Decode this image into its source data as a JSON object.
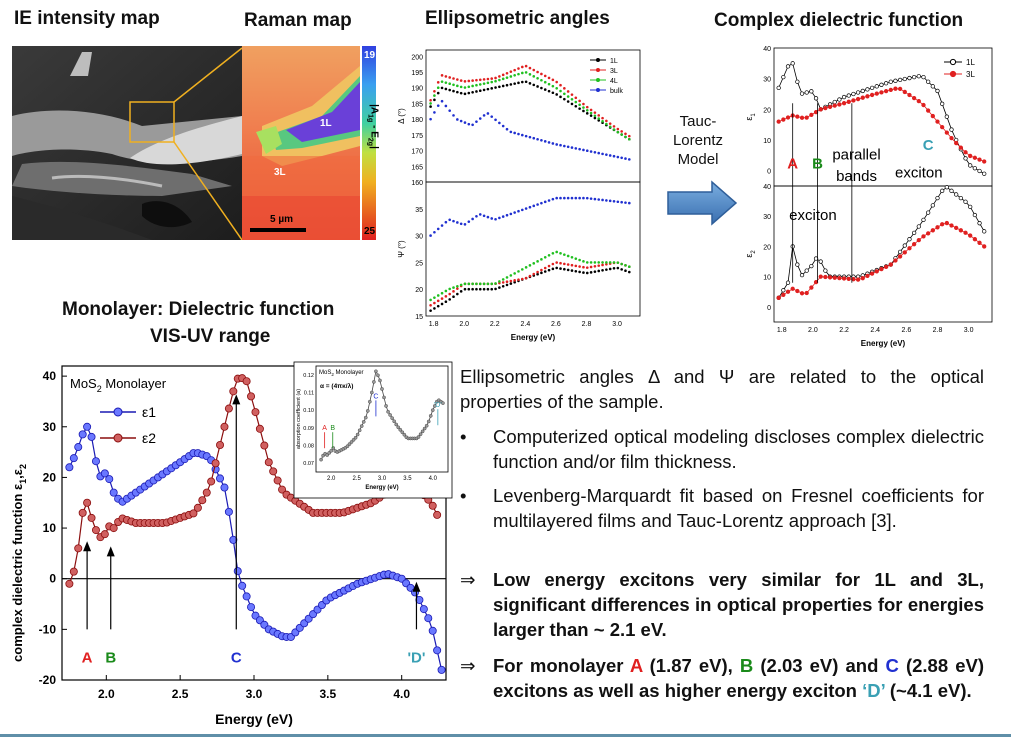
{
  "headers": {
    "ie_map": "IE intensity map",
    "raman_map": "Raman map",
    "ellipsometric": "Ellipsometric angles",
    "complex_dielectric": "Complex dielectric function",
    "monolayer_line1": "Monolayer: Dielectric function",
    "monolayer_line2": "VIS-UV range"
  },
  "raman": {
    "scale_top": "19",
    "scale_bottom": "25",
    "scale_label": "|A",
    "scale_label_sub": "1g",
    "scale_label_mid": " - E",
    "scale_label_sub2": "2g",
    "scale_label_end": "|",
    "label_1l": "1L",
    "label_3l": "3L",
    "scalebar": "5 µm"
  },
  "arrow_label": {
    "line1": "Tauc-",
    "line2": "Lorentz",
    "line3": "Model"
  },
  "ellipso_chart": {
    "delta_ylabel": "Δ (°)",
    "psi_ylabel": "Ψ (°)",
    "xlabel": "Energy (eV)",
    "legend": [
      "1L",
      "3L",
      "4L",
      "bulk"
    ],
    "delta_ticks": [
      "160",
      "165",
      "170",
      "175",
      "180",
      "185",
      "190",
      "195",
      "200"
    ],
    "psi_ticks": [
      "15",
      "20",
      "25",
      "30",
      "35"
    ],
    "x_ticks": [
      "1.8",
      "2.0",
      "2.2",
      "2.4",
      "2.6",
      "2.8",
      "3.0"
    ]
  },
  "complex_chart": {
    "e1_ylabel": "ε",
    "e1_sub": "1",
    "e2_ylabel": "ε",
    "e2_sub": "2",
    "xlabel": "Energy (eV)",
    "legend": [
      "1L",
      "3L"
    ],
    "e1_ticks": [
      "0",
      "10",
      "20",
      "30",
      "40"
    ],
    "e2_ticks": [
      "0",
      "10",
      "20",
      "30",
      "40"
    ],
    "x_ticks": [
      "1.8",
      "2.0",
      "2.2",
      "2.4",
      "2.6",
      "2.8",
      "3.0"
    ],
    "label_A": "A",
    "label_B": "B",
    "label_C": "C",
    "label_parallel": "parallel",
    "label_bands": "bands",
    "label_exciton1": "exciton",
    "label_exciton2": "exciton"
  },
  "mono_chart": {
    "title": "MoS",
    "title_sub": "2",
    "title_end": " Monolayer",
    "legend": [
      "ε1",
      "ε2"
    ],
    "ylabel": "complex dielectric function ε",
    "ylabel_sub": "1",
    "ylabel_sep": ",ε",
    "ylabel_sub2": "2",
    "xlabel": "Energy (eV)",
    "y_ticks": [
      "40",
      "30",
      "20",
      "10",
      "0",
      "-10",
      "-20"
    ],
    "x_ticks": [
      "2.0",
      "2.5",
      "3.0",
      "3.5",
      "4.0"
    ],
    "label_A": "A",
    "label_B": "B",
    "label_C": "C",
    "label_D": "'D'",
    "inset_title": "MoS",
    "inset_title_sub": "2",
    "inset_title_end": " Monolayer",
    "inset_formula": "α = (4πκ/λ)",
    "inset_ylabel": "absorption coefficient (a)",
    "inset_xlabel": "Energy (eV)",
    "inset_y_ticks": [
      "0.12",
      "0.11",
      "0.10",
      "0.09",
      "0.08",
      "0.07"
    ],
    "inset_x_ticks": [
      "2.0",
      "2.5",
      "3.0",
      "3.5",
      "4.0"
    ],
    "inset_A": "A",
    "inset_B": "B",
    "inset_C": "C",
    "inset_D": "'D'"
  },
  "text": {
    "p1_a": "Ellipsometric angles Δ and Ψ are related to the optical properties of the sample.",
    "b1": "Computerized optical modeling discloses complex dielectric function and/or film thickness.",
    "b2": "Levenberg-Marquardt fit based on Fresnel coefficients for multilayered films and Tauc-Lorentz approach [3].",
    "bullet_mark": "•",
    "arrow_mark": "⇒",
    "c1": "Low energy excitons very similar for 1L and 3L, significant differences in optical properties for energies larger than ~ 2.1 eV.",
    "c2_pre": "For monolayer ",
    "c2_A": "A",
    "c2_a_val": " (1.87 eV), ",
    "c2_B": "B",
    "c2_b_val": " (2.03 eV) and ",
    "c2_C": "C",
    "c2_c_val": " (2.88 eV) excitons as well as higher energy exciton ",
    "c2_D": "‘D’",
    "c2_end": " (~4.1 eV)."
  },
  "chart_data": [
    {
      "type": "line",
      "title": "",
      "xlabel": "Energy (eV)",
      "ylabel": "complex dielectric function ε1,ε2",
      "xlim": [
        1.7,
        4.3
      ],
      "ylim": [
        -20,
        42
      ],
      "series": [
        {
          "name": "ε1",
          "x": [
            1.75,
            1.8,
            1.83,
            1.85,
            1.87,
            1.9,
            1.95,
            2.0,
            2.03,
            2.05,
            2.1,
            2.2,
            2.4,
            2.6,
            2.7,
            2.8,
            2.85,
            2.88,
            2.9,
            3.0,
            3.1,
            3.2,
            3.25,
            3.3,
            3.5,
            3.7,
            3.9,
            4.0,
            4.1,
            4.2,
            4.27
          ],
          "y": [
            22,
            25,
            28,
            29,
            30,
            28,
            20,
            21,
            19,
            17,
            15,
            17,
            21,
            25,
            24,
            18,
            10,
            3,
            0,
            -7,
            -10,
            -11.5,
            -11.5,
            -10,
            -4,
            -1,
            1,
            0,
            -3,
            -9,
            -18
          ]
        },
        {
          "name": "ε2",
          "x": [
            1.75,
            1.8,
            1.83,
            1.85,
            1.87,
            1.9,
            1.95,
            2.0,
            2.03,
            2.05,
            2.1,
            2.2,
            2.4,
            2.6,
            2.7,
            2.8,
            2.85,
            2.88,
            2.9,
            2.95,
            3.0,
            3.1,
            3.2,
            3.4,
            3.6,
            3.8,
            3.9,
            4.0,
            4.1,
            4.2,
            4.25
          ],
          "y": [
            -1,
            3,
            12,
            14,
            15,
            12,
            8,
            9,
            11,
            10,
            12,
            11,
            11,
            13,
            18,
            30,
            36,
            39,
            40,
            39,
            34,
            23,
            17,
            13,
            13,
            15,
            17,
            18,
            18,
            15,
            12
          ]
        }
      ]
    },
    {
      "type": "line",
      "title": "",
      "xlabel": "Energy (eV)",
      "ylabel": "absorption coefficient (a)",
      "xlim": [
        1.7,
        4.3
      ],
      "ylim": [
        0.065,
        0.125
      ],
      "series": [
        {
          "name": "",
          "x": [
            1.8,
            1.87,
            1.9,
            2.0,
            2.03,
            2.1,
            2.3,
            2.5,
            2.7,
            2.8,
            2.88,
            2.95,
            3.1,
            3.3,
            3.5,
            3.7,
            3.9,
            4.0,
            4.1,
            4.2
          ],
          "y": [
            0.072,
            0.076,
            0.074,
            0.077,
            0.079,
            0.076,
            0.079,
            0.085,
            0.097,
            0.11,
            0.122,
            0.118,
            0.1,
            0.091,
            0.084,
            0.084,
            0.092,
            0.1,
            0.106,
            0.104
          ]
        }
      ]
    }
  ]
}
